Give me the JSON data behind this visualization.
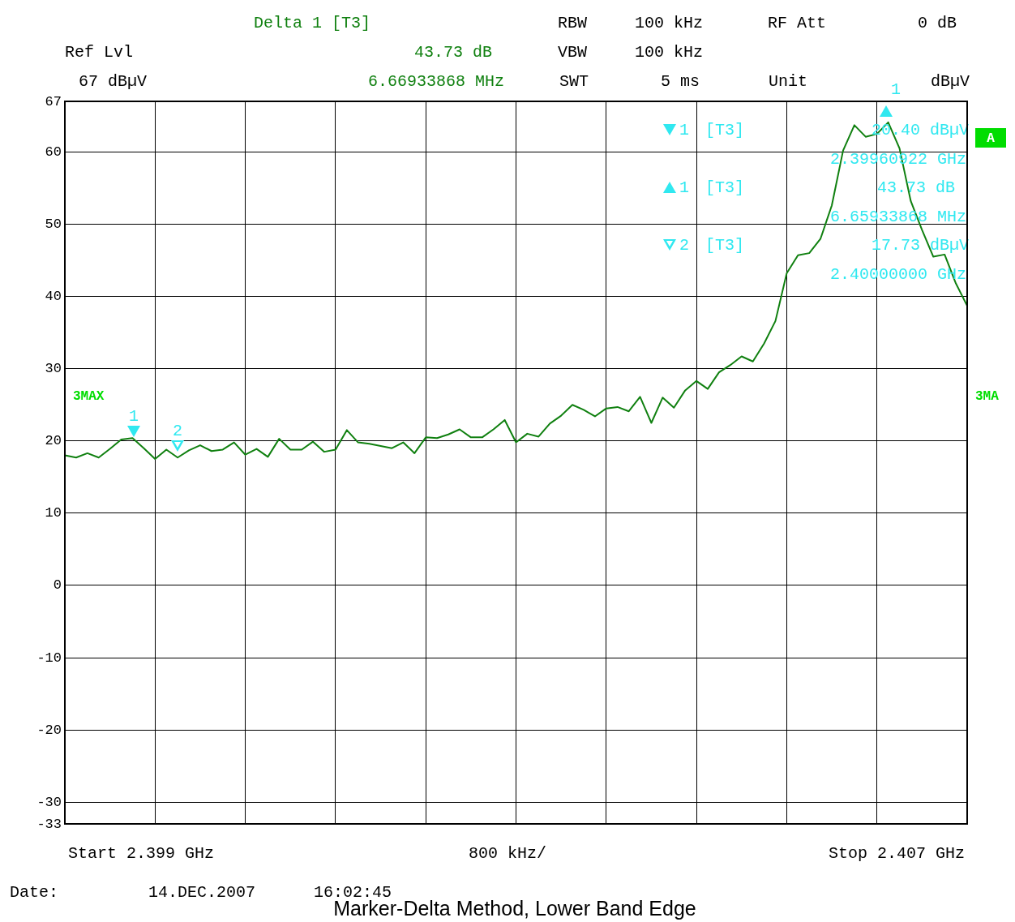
{
  "chart_data": {
    "type": "line",
    "title": "Marker-Delta Method, Lower Band Edge",
    "categories": [
      null,
      null,
      null,
      null,
      null,
      null,
      null,
      null,
      null,
      null,
      null,
      null,
      null,
      null,
      null,
      null,
      null,
      null,
      null,
      null,
      null,
      null,
      null,
      null,
      null,
      null,
      null,
      null,
      null,
      null,
      null,
      null,
      null,
      null,
      null,
      null,
      null,
      null,
      null,
      null,
      null,
      null,
      null,
      null,
      null,
      null,
      null,
      null,
      null,
      null,
      null,
      null,
      null,
      null,
      null,
      null,
      null,
      null,
      null,
      null,
      null,
      null,
      null,
      null,
      null,
      null,
      null,
      null,
      null,
      null,
      null,
      null,
      null,
      null,
      null,
      null,
      null,
      null,
      null,
      null,
      null
    ],
    "series": [
      {
        "color": "#108010",
        "values": [
          18,
          17.7,
          18.3,
          17.7,
          18.9,
          20.2,
          20.4,
          19,
          17.5,
          18.8,
          17.7,
          18.7,
          19.4,
          18.6,
          18.8,
          19.8,
          18.1,
          18.9,
          17.8,
          20.3,
          18.8,
          18.8,
          19.9,
          18.5,
          18.8,
          21.5,
          19.8,
          19.6,
          19.3,
          19,
          19.8,
          18.3,
          20.5,
          20.4,
          20.9,
          21.6,
          20.5,
          20.5,
          21.6,
          22.9,
          19.8,
          21,
          20.6,
          22.4,
          23.5,
          25,
          24.3,
          23.4,
          24.5,
          24.7,
          24.1,
          26.1,
          22.5,
          26,
          24.6,
          27,
          28.3,
          27.2,
          29.5,
          30.5,
          31.7,
          31,
          33.5,
          36.6,
          43.2,
          45.7,
          46,
          48,
          52.6,
          60.2,
          63.7,
          62.1,
          62.5,
          64.1,
          60.5,
          53.2,
          49.2,
          45.5,
          45.8,
          41.8,
          38.7
        ]
      }
    ],
    "ylim": [
      -33,
      67
    ],
    "yticks": [
      -33,
      -30,
      -20,
      -10,
      0,
      10,
      20,
      30,
      40,
      50,
      60,
      67
    ],
    "tick_labels": "y",
    "grid": true,
    "legend": false,
    "marker": "none",
    "line_style": "solid",
    "annotations": [
      "Delta 1 [T3]",
      "Ref Lvl",
      "43.73 dB",
      "67 dBµV",
      "6.66933868 MHz",
      "RBW",
      "100 kHz",
      "VBW",
      "100 kHz",
      "SWT",
      "5 ms",
      "RF Att",
      "0 dB",
      "Unit",
      "dBµV",
      "[T3]",
      "20.40 dBµV",
      "2.39960922 GHz",
      "[T3]",
      "43.73 dB",
      "6.65933868 MHz",
      "[T3]",
      "17.73 dBµV",
      "2.40000000 GHz",
      "1",
      "1",
      "2",
      "3MAX",
      "3MA",
      "A",
      "Start 2.399 GHz",
      "800 kHz/",
      "Stop 2.407 GHz",
      "Date:",
      "14.DEC.2007",
      "16:02:45",
      "1",
      "2",
      "1"
    ]
  }
}
